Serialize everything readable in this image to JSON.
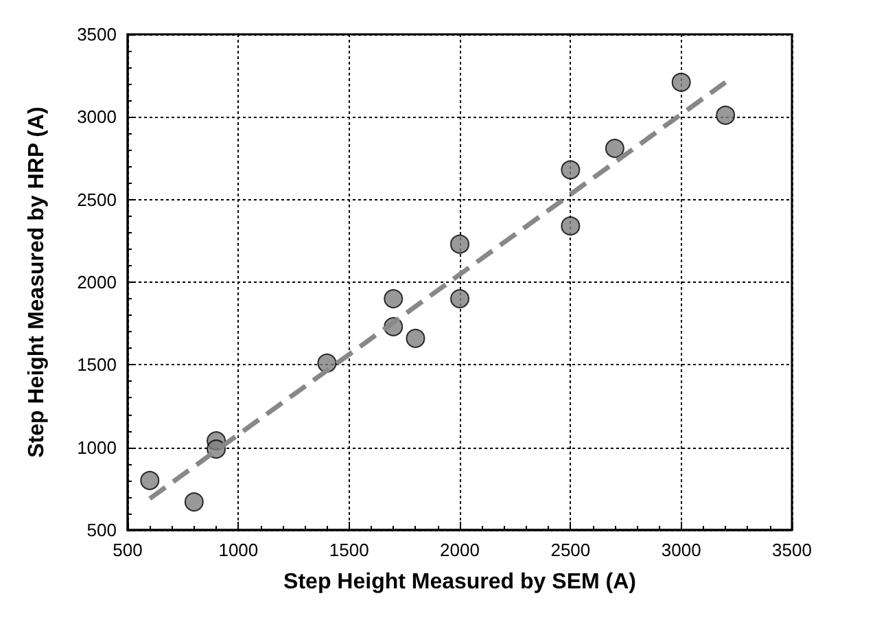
{
  "chart_data": {
    "type": "scatter",
    "xlabel": "Step Height Measured by SEM (A)",
    "ylabel": "Step Height Measured by HRP (A)",
    "xlim": [
      500,
      3500
    ],
    "xticks": [
      500,
      1000,
      1500,
      2000,
      2500,
      3000,
      3500
    ],
    "ylim": [
      500,
      3500
    ],
    "yticks": [
      500,
      1000,
      1500,
      2000,
      2500,
      3000,
      3500
    ],
    "grid": true,
    "marker": "circle",
    "series": [
      {
        "color": "#808080",
        "x": [
          600,
          800,
          900,
          900,
          1400,
          1700,
          1700,
          1800,
          2000,
          2000,
          2500,
          2500,
          2700,
          3000,
          3200
        ],
        "values": [
          800,
          670,
          1040,
          990,
          1510,
          1900,
          1730,
          1660,
          2230,
          1900,
          2680,
          2340,
          2810,
          3210,
          3010
        ]
      },
      {
        "type": "line",
        "color": "#888888",
        "line_style": "dashed",
        "marker": "none",
        "x": [
          600,
          3200
        ],
        "values": [
          690,
          3210
        ]
      }
    ]
  }
}
